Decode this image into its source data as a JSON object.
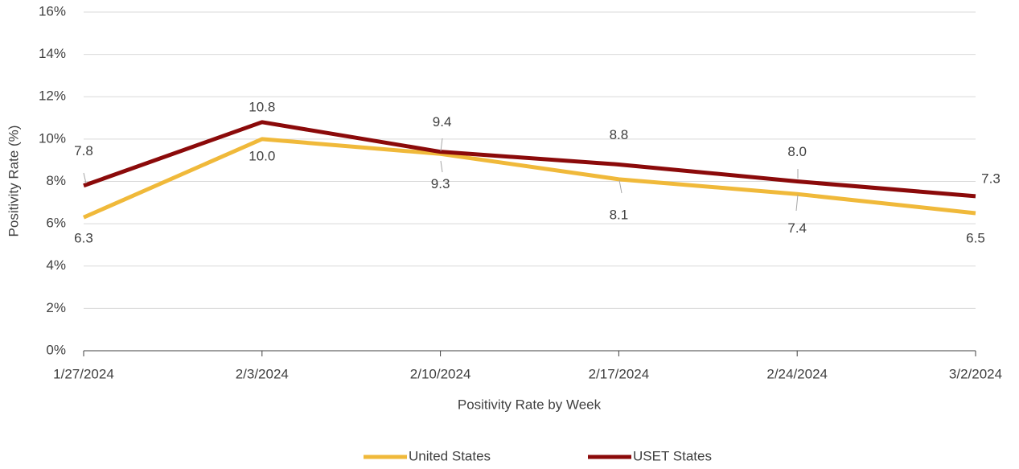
{
  "chart_data": {
    "type": "line",
    "x_label": "Positivity Rate by Week",
    "y_label": "Positivity Rate (%)",
    "categories": [
      "1/27/2024",
      "2/3/2024",
      "2/10/2024",
      "2/17/2024",
      "2/24/2024",
      "3/2/2024"
    ],
    "series": [
      {
        "name": "United States",
        "color": "#f0b93a",
        "values": [
          6.3,
          10.0,
          9.3,
          8.1,
          7.4,
          6.5
        ],
        "value_labels": [
          "6.3",
          "10.0",
          "9.3",
          "8.1",
          "7.4",
          "6.5"
        ]
      },
      {
        "name": "USET States",
        "color": "#8b0a0a",
        "values": [
          7.8,
          10.8,
          9.4,
          8.8,
          8.0,
          7.3
        ],
        "value_labels": [
          "7.8",
          "10.8",
          "9.4",
          "8.8",
          "8.0",
          "7.3"
        ]
      }
    ],
    "ylim": [
      0,
      16
    ],
    "yticks": [
      {
        "value": 0,
        "label": "0%"
      },
      {
        "value": 2,
        "label": "2%"
      },
      {
        "value": 4,
        "label": "4%"
      },
      {
        "value": 6,
        "label": "6%"
      },
      {
        "value": 8,
        "label": "8%"
      },
      {
        "value": 10,
        "label": "10%"
      },
      {
        "value": 12,
        "label": "12%"
      },
      {
        "value": 14,
        "label": "14%"
      },
      {
        "value": 16,
        "label": "16%"
      }
    ],
    "grid": true,
    "legend": "bottom"
  }
}
